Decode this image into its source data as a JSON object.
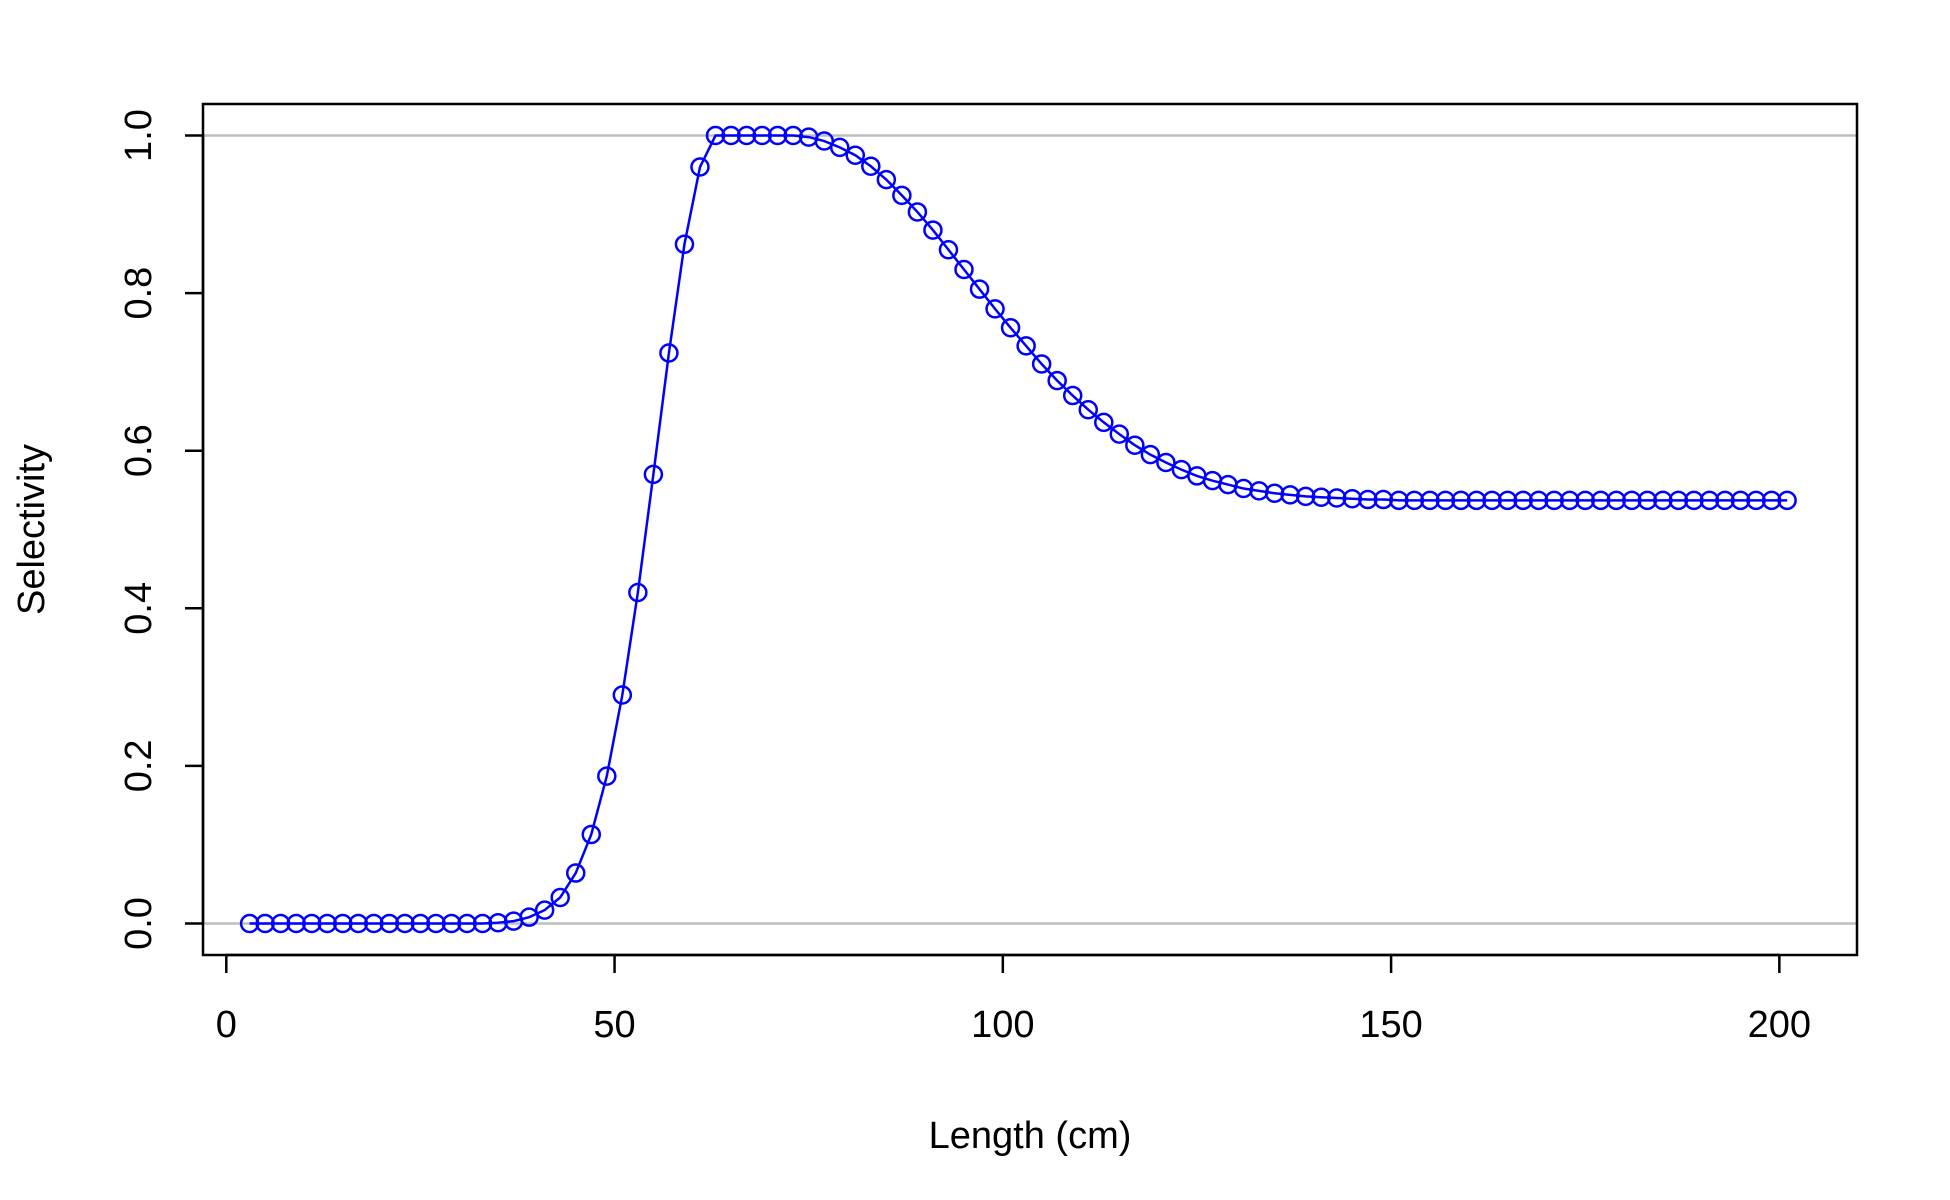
{
  "chart_data": {
    "type": "line",
    "title": "",
    "xlabel": "Length (cm)",
    "ylabel": "Selectivity",
    "xlim": [
      -3,
      210
    ],
    "ylim": [
      -0.04,
      1.04
    ],
    "xticks": [
      0,
      50,
      100,
      150,
      200
    ],
    "yticks": [
      0.0,
      0.2,
      0.4,
      0.6,
      0.8,
      1.0
    ],
    "xtick_labels": [
      "0",
      "50",
      "100",
      "150",
      "200"
    ],
    "ytick_labels": [
      "0.0",
      "0.2",
      "0.4",
      "0.6",
      "0.8",
      "1.0"
    ],
    "reference_lines": [
      0,
      1
    ],
    "reference_line_color": "#bebebe",
    "series_color": "#0000ff",
    "marker": "open-circle",
    "grid": false,
    "series": [
      {
        "x": [
          3,
          5,
          7,
          9,
          11,
          13,
          15,
          17,
          19,
          21,
          23,
          25,
          27,
          29,
          31,
          33,
          35,
          37,
          39,
          41,
          43,
          45,
          47,
          49,
          51,
          53,
          55,
          57,
          59,
          61,
          63,
          65,
          67,
          69,
          71,
          73,
          75,
          77,
          79,
          81,
          83,
          85,
          87,
          89,
          91,
          93,
          95,
          97,
          99,
          101,
          103,
          105,
          107,
          109,
          111,
          113,
          115,
          117,
          119,
          121,
          123,
          125,
          127,
          129,
          131,
          133,
          135,
          137,
          139,
          141,
          143,
          145,
          147,
          149,
          151,
          153,
          155,
          157,
          159,
          161,
          163,
          165,
          167,
          169,
          171,
          173,
          175,
          177,
          179,
          181,
          183,
          185,
          187,
          189,
          191,
          193,
          195,
          197,
          199,
          201
        ],
        "y": [
          0.0,
          0.0,
          0.0,
          0.0,
          0.0,
          0.0,
          0.0,
          0.0,
          0.0,
          0.0,
          0.0,
          0.0,
          0.0,
          0.0,
          0.0,
          0.0,
          0.001,
          0.003,
          0.008,
          0.017,
          0.033,
          0.064,
          0.113,
          0.187,
          0.29,
          0.42,
          0.57,
          0.724,
          0.862,
          0.96,
          1.0,
          1.0,
          1.0,
          1.0,
          1.0,
          1.0,
          0.998,
          0.993,
          0.985,
          0.975,
          0.961,
          0.944,
          0.924,
          0.903,
          0.88,
          0.855,
          0.83,
          0.805,
          0.78,
          0.756,
          0.733,
          0.71,
          0.689,
          0.67,
          0.652,
          0.636,
          0.621,
          0.607,
          0.595,
          0.585,
          0.576,
          0.568,
          0.562,
          0.557,
          0.552,
          0.549,
          0.546,
          0.544,
          0.542,
          0.541,
          0.54,
          0.539,
          0.538,
          0.538,
          0.537,
          0.537,
          0.537,
          0.537,
          0.537,
          0.537,
          0.537,
          0.537,
          0.537,
          0.537,
          0.537,
          0.537,
          0.537,
          0.537,
          0.537,
          0.537,
          0.537,
          0.537,
          0.537,
          0.537,
          0.537,
          0.537,
          0.537,
          0.537,
          0.537,
          0.537
        ]
      }
    ]
  }
}
